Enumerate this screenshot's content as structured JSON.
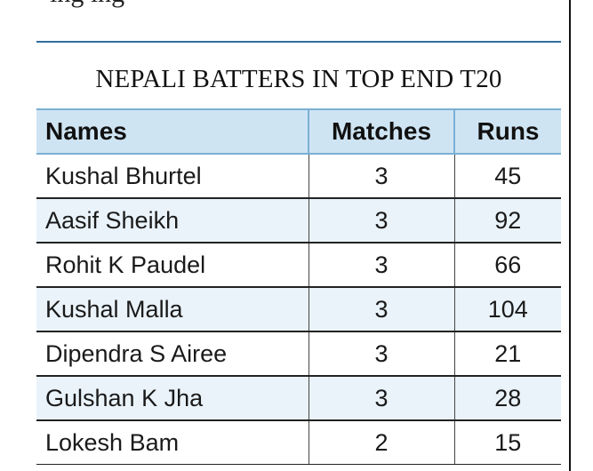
{
  "chart_data": {
    "type": "table",
    "title": "NEPALI BATTERS IN TOP END T20",
    "columns": [
      "Names",
      "Matches",
      "Runs"
    ],
    "rows": [
      {
        "name": "Kushal Bhurtel",
        "matches": 3,
        "runs": 45
      },
      {
        "name": "Aasif Sheikh",
        "matches": 3,
        "runs": 92
      },
      {
        "name": "Rohit K Paudel",
        "matches": 3,
        "runs": 66
      },
      {
        "name": "Kushal Malla",
        "matches": 3,
        "runs": 104
      },
      {
        "name": "Dipendra S Airee",
        "matches": 3,
        "runs": 21
      },
      {
        "name": "Gulshan K Jha",
        "matches": 3,
        "runs": 28
      },
      {
        "name": "Lokesh Bam",
        "matches": 2,
        "runs": 15
      }
    ]
  },
  "colors": {
    "header_fill": "#cfe4f3",
    "alt_row_fill": "#eaf3fa",
    "accent_rule": "#2f6f9e"
  }
}
